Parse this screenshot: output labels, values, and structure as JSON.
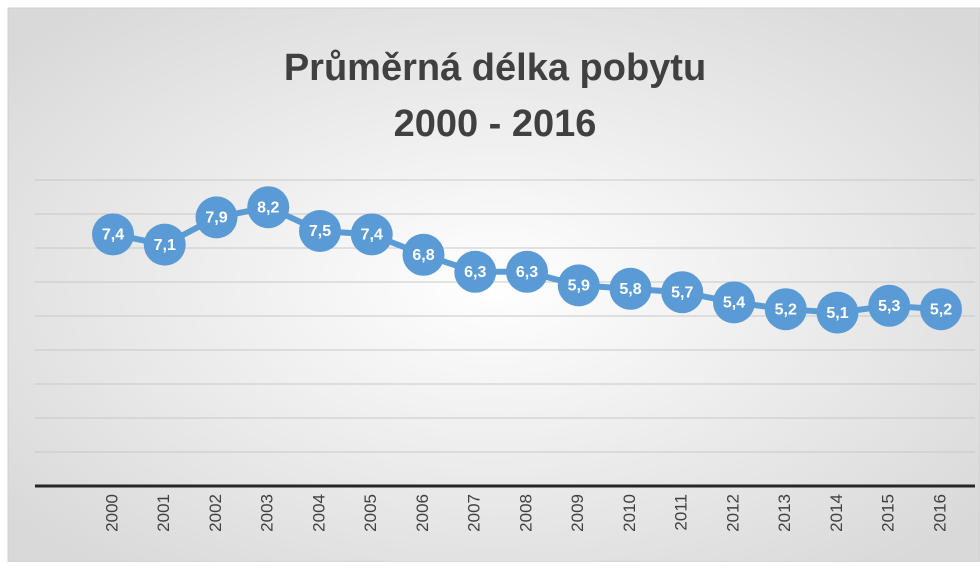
{
  "chart_data": {
    "type": "line",
    "title": [
      "Průměrná délka pobytu",
      "2000 - 2016"
    ],
    "categories": [
      "2000",
      "2001",
      "2002",
      "2003",
      "2004",
      "2005",
      "2006",
      "2007",
      "2008",
      "2009",
      "2010",
      "2011",
      "2012",
      "2013",
      "2014",
      "2015",
      "2016"
    ],
    "series": [
      {
        "name": "Průměrná délka pobytu",
        "color": "#5b9bd5",
        "values": [
          7.4,
          7.1,
          7.9,
          8.2,
          7.5,
          7.4,
          6.8,
          6.3,
          6.3,
          5.9,
          5.8,
          5.7,
          5.4,
          5.2,
          5.1,
          5.3,
          5.2
        ],
        "value_labels": [
          "7,4",
          "7,1",
          "7,9",
          "8,2",
          "7,5",
          "7,4",
          "6,8",
          "6,3",
          "6,3",
          "5,9",
          "5,8",
          "5,7",
          "5,4",
          "5,2",
          "5,1",
          "5,3",
          "5,2"
        ]
      }
    ],
    "ylim": [
      0,
      9
    ],
    "yticks": [
      0,
      1,
      2,
      3,
      4,
      5,
      6,
      7,
      8,
      9
    ],
    "grid": true
  }
}
